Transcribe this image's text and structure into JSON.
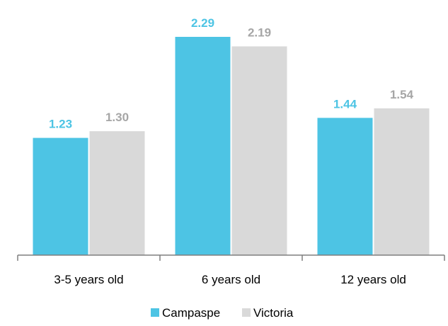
{
  "chart_data": {
    "type": "bar",
    "categories": [
      "3-5 years old",
      "6 years old",
      "12 years old"
    ],
    "series": [
      {
        "name": "Campaspe",
        "values": [
          1.23,
          2.29,
          1.44
        ],
        "value_labels": [
          "1.23",
          "2.29",
          "1.44"
        ],
        "color": "#4DC4E4",
        "label_color": "#4DC4E4"
      },
      {
        "name": "Victoria",
        "values": [
          1.3,
          2.19,
          1.54
        ],
        "value_labels": [
          "1.30",
          "2.19",
          "1.54"
        ],
        "color": "#D9D9D9",
        "label_color": "#A6A6A6"
      }
    ],
    "ylim": [
      0,
      2.29
    ],
    "grid": false,
    "legend_position": "bottom",
    "axis_color": "#7F7F7F"
  }
}
